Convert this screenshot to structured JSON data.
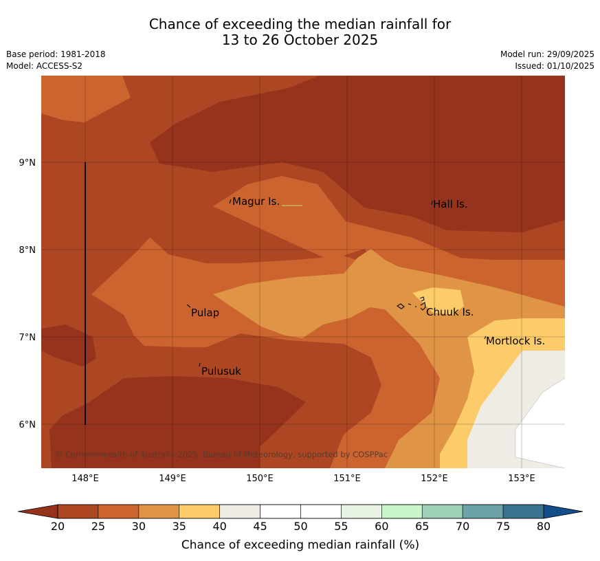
{
  "title": {
    "line1": "Chance of exceeding the median rainfall for",
    "line2": "13 to 26 October 2025"
  },
  "meta": {
    "base_period": "Base period: 1981-2018",
    "model": "Model: ACCESS-S2",
    "model_run": "Model run: 29/09/2025",
    "issued": "Issued: 01/10/2025"
  },
  "map": {
    "lat_ticks": [
      "9°N",
      "8°N",
      "7°N",
      "6°N"
    ],
    "lon_ticks": [
      "148°E",
      "149°E",
      "150°E",
      "151°E",
      "152°E",
      "153°E"
    ],
    "places": [
      "Magur Is.",
      "Hall Is.",
      "Pulap",
      "Chuuk Is.",
      "Mortlock Is.",
      "Pulusuk"
    ],
    "copyright": "© Commonwealth of Australia 2025, Bureau of Meteorology, supported by COSPPac"
  },
  "colorbar": {
    "label": "Chance of exceeding median rainfall (%)",
    "ticks": [
      "20",
      "25",
      "30",
      "35",
      "40",
      "45",
      "50",
      "55",
      "60",
      "65",
      "70",
      "75",
      "80"
    ],
    "colors": [
      "#ad4723",
      "#cc6430",
      "#e09445",
      "#fdcc6a",
      "#efebe5",
      "#ffffff",
      "#ffffff",
      "#e8f3e3",
      "#c8f6c8",
      "#9ed0b7",
      "#6ba3a6",
      "#3b7290"
    ],
    "under_color": "#95331d",
    "over_color": "#144e88"
  }
}
